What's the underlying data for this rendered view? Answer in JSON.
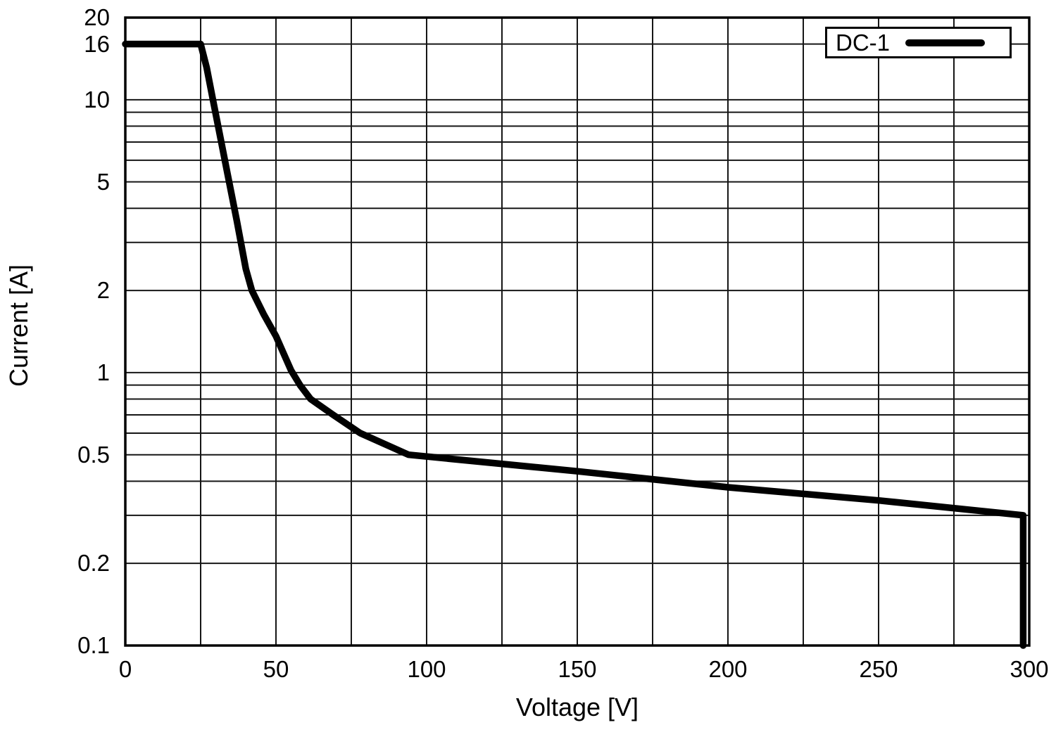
{
  "figure": {
    "background": "#ffffff",
    "stroke_color": "#000000",
    "grid_color": "#161616",
    "text_color": "#000000"
  },
  "legend": {
    "label": "DC-1",
    "position": "top-right"
  },
  "chart_data": {
    "type": "line",
    "title": "",
    "xlabel": "Voltage [V]",
    "ylabel": "Current [A]",
    "grid": true,
    "legend_position": "top-right",
    "x_axis": {
      "scale": "linear",
      "min": 0,
      "max": 300,
      "grid_step": 25,
      "tick_labels": [
        "0",
        "50",
        "100",
        "150",
        "200",
        "250",
        "300"
      ]
    },
    "y_axis": {
      "scale": "log",
      "min": 0.1,
      "max": 20,
      "tick_labels": [
        "20",
        "16",
        "10",
        "5",
        "2",
        "1",
        "0.5",
        "0.2",
        "0.1"
      ],
      "gridlines": [
        20,
        16,
        10,
        9,
        8,
        7,
        6,
        5,
        4,
        3,
        2,
        1,
        0.9,
        0.8,
        0.7,
        0.6,
        0.5,
        0.4,
        0.3,
        0.2,
        0.1
      ]
    },
    "series": [
      {
        "name": "DC-1",
        "color": "#000000",
        "points": [
          [
            0,
            16
          ],
          [
            25,
            16
          ],
          [
            27,
            13.1
          ],
          [
            29,
            10.1
          ],
          [
            31,
            7.8
          ],
          [
            34,
            5.3
          ],
          [
            37,
            3.6
          ],
          [
            40,
            2.4
          ],
          [
            42,
            2.0
          ],
          [
            46,
            1.63
          ],
          [
            50,
            1.36
          ],
          [
            55,
            1.02
          ],
          [
            58,
            0.9
          ],
          [
            61.5,
            0.8
          ],
          [
            69,
            0.7
          ],
          [
            78,
            0.6
          ],
          [
            94,
            0.5
          ],
          [
            150,
            0.435
          ],
          [
            200,
            0.38
          ],
          [
            250,
            0.34
          ],
          [
            298,
            0.3
          ],
          [
            298,
            0.1
          ]
        ]
      }
    ]
  }
}
